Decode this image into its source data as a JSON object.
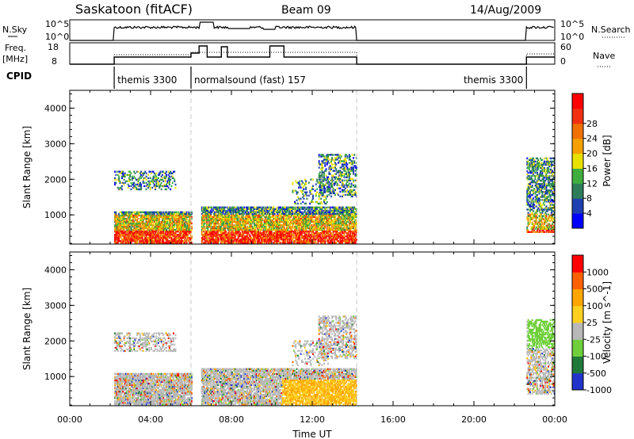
{
  "header": {
    "station": "Saskatoon (fitACF)",
    "beam": "Beam 09",
    "date": "14/Aug/2009"
  },
  "top_panels": {
    "nsky_label": "N.Sky",
    "nsky_ticks": [
      "10^5",
      "10^0"
    ],
    "nsearch_label": "N.Search",
    "freq_label": "Freq.",
    "freq_unit": "[MHz]",
    "freq_ticks": [
      "18",
      "8"
    ],
    "nave_ticks": [
      "60",
      "0"
    ],
    "nave_label": "Nave",
    "cpid_label": "CPID",
    "cpid_segments": [
      {
        "label": "themis 3300",
        "start": 2.2,
        "end": 6.0
      },
      {
        "label": "normalsound (fast) 157",
        "start": 6.0,
        "end": 14.2
      },
      {
        "label": "themis 3300",
        "start": 22.6,
        "end": 24.0
      }
    ]
  },
  "chart_data": {
    "type": "heatmap",
    "x_ticks": [
      "00:00",
      "04:00",
      "08:00",
      "12:00",
      "16:00",
      "20:00",
      "00:00"
    ],
    "xlabel": "Time UT",
    "xlim": [
      0,
      24
    ],
    "ylabel": "Slant Range [km]",
    "ylim": [
      180,
      4500
    ],
    "y_ticks": [
      "1000",
      "2000",
      "3000",
      "4000"
    ],
    "data_windows": [
      [
        2.2,
        6.0
      ],
      [
        6.0,
        14.2
      ],
      [
        22.6,
        24.0
      ]
    ],
    "panels": [
      {
        "name": "Power",
        "colorbar_label": "Power [dB]",
        "colorbar_ticks": [
          "4",
          "8",
          "12",
          "16",
          "20",
          "24",
          "28"
        ],
        "colors": [
          "#0000ff",
          "#1f3fb0",
          "#2e7d5a",
          "#3fae3f",
          "#e8e000",
          "#f5a000",
          "#f07000",
          "#f03010",
          "#ff0000"
        ]
      },
      {
        "name": "Velocity",
        "colorbar_label": "Velocity [m s^-1]",
        "colorbar_ticks": [
          "1000",
          "500",
          "100",
          "25",
          "-25",
          "-100",
          "-500",
          "-1000"
        ],
        "colors": [
          "#2233cc",
          "#1f7a3a",
          "#6ecf3a",
          "#b8b8b8",
          "#ffd020",
          "#ffa500",
          "#ff6000",
          "#ff0000"
        ]
      }
    ]
  }
}
